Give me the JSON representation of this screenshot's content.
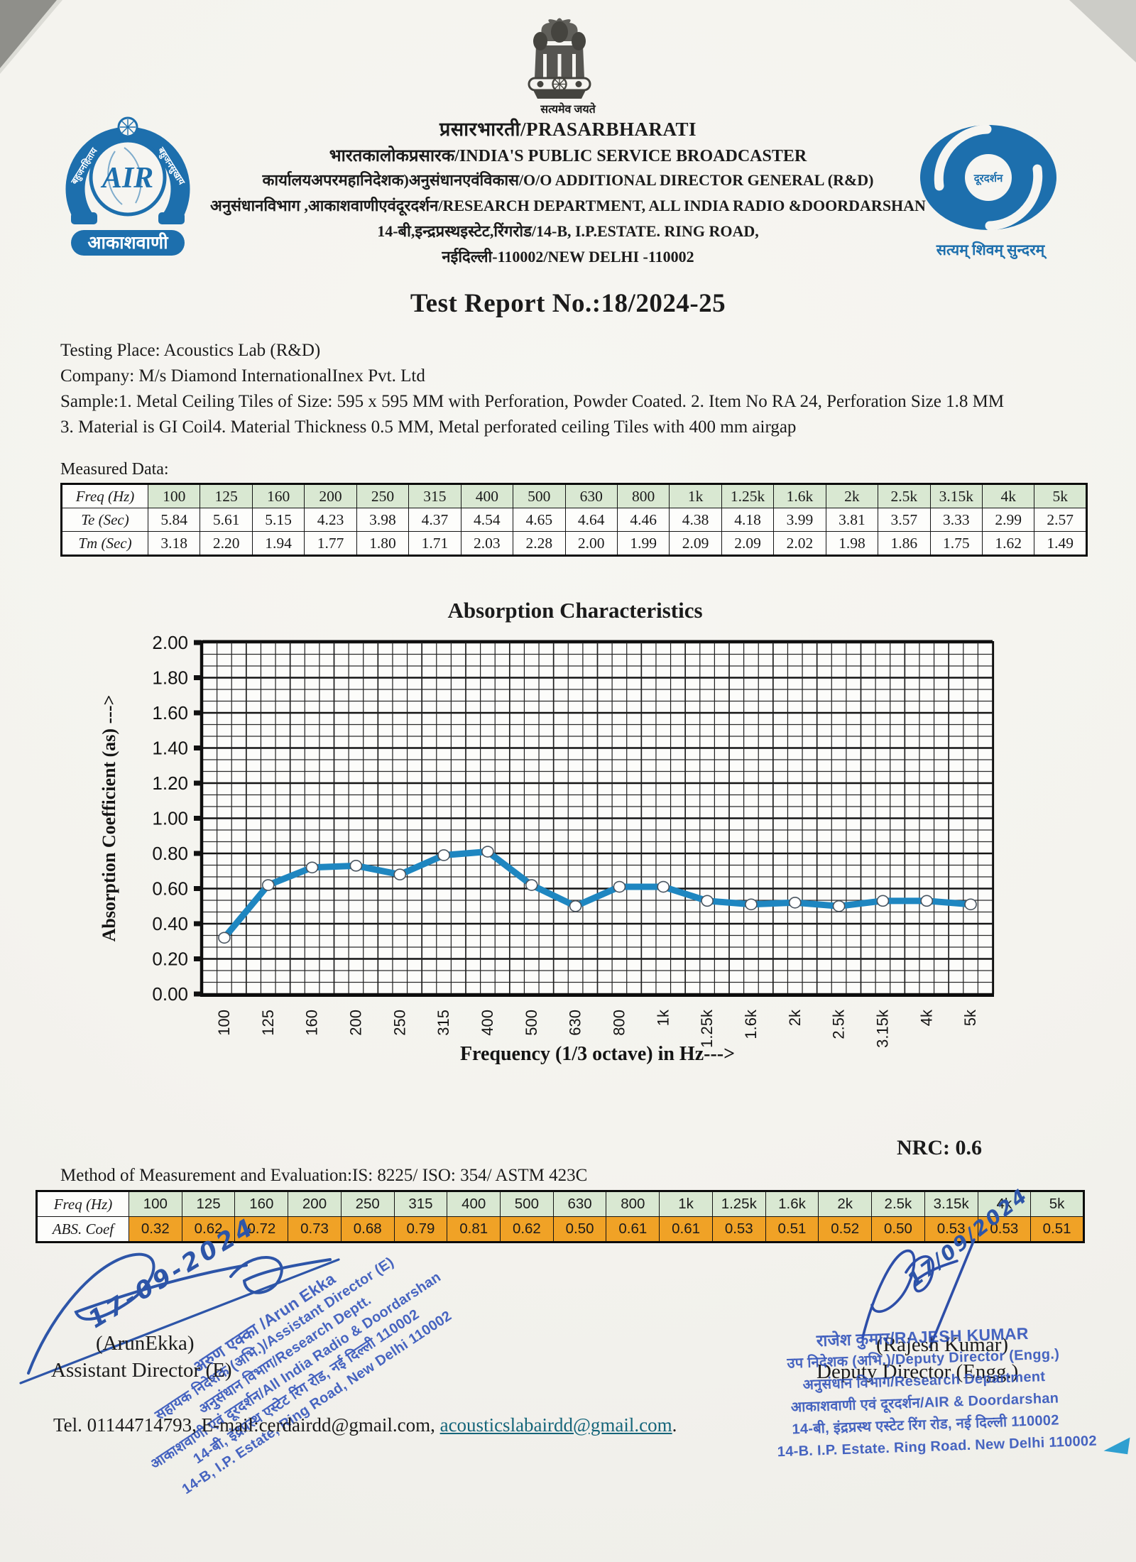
{
  "header": {
    "emblem_caption": "सत्यमेव जयते",
    "line1": "प्रसारभारती/PRASARBHARATI",
    "line2": "भारतकालोकप्रसारक/INDIA'S PUBLIC SERVICE BROADCASTER",
    "line3": "कार्यालयअपरमहानिदेशक)अनुसंधानएवंविकास/O/O ADDITIONAL DIRECTOR GENERAL (R&D)",
    "line4": "अनुसंधानविभाग ,आकाशवाणीएवंदूरदर्शन/RESEARCH DEPARTMENT, ALL INDIA RADIO &DOORDARSHAN",
    "line5": "14-बी,इन्द्रप्रस्थइस्टेट,रिंगरोड/14-B, I.P.ESTATE. RING ROAD,",
    "line6": "नईदिल्ली-110002/NEW DELHI -110002",
    "air_logo": {
      "monogram": "AIR",
      "label": "आकाशवाणी",
      "arc_left": "बहुजनहिताय",
      "arc_right": "बहुजनसुखाय"
    },
    "dd_logo": {
      "center": "दूरदर्शन",
      "motto": "सत्यम् शिवम् सुन्दरम्"
    }
  },
  "title": "Test Report No.:18/2024-25",
  "info": {
    "testing_place": "Testing Place: Acoustics Lab (R&D)",
    "company": "Company:  M/s Diamond  InternationalInex Pvt. Ltd",
    "sample_line1": "Sample:1. Metal Ceiling Tiles of Size: 595 x 595 MM with Perforation, Powder Coated. 2. Item No RA 24, Perforation Size 1.8 MM",
    "sample_line2": "3. Material is GI Coil4. Material Thickness 0.5 MM, Metal perforated ceiling Tiles with 400 mm airgap"
  },
  "measured_data": {
    "section_label": "Measured Data:",
    "row_headers": [
      "Freq (Hz)",
      "Te (Sec)",
      "Tm (Sec)"
    ],
    "frequencies": [
      "100",
      "125",
      "160",
      "200",
      "250",
      "315",
      "400",
      "500",
      "630",
      "800",
      "1k",
      "1.25k",
      "1.6k",
      "2k",
      "2.5k",
      "3.15k",
      "4k",
      "5k"
    ],
    "te": [
      "5.84",
      "5.61",
      "5.15",
      "4.23",
      "3.98",
      "4.37",
      "4.54",
      "4.65",
      "4.64",
      "4.46",
      "4.38",
      "4.18",
      "3.99",
      "3.81",
      "3.57",
      "3.33",
      "2.99",
      "2.57"
    ],
    "tm": [
      "3.18",
      "2.20",
      "1.94",
      "1.77",
      "1.80",
      "1.71",
      "2.03",
      "2.28",
      "2.00",
      "1.99",
      "2.09",
      "2.09",
      "2.02",
      "1.98",
      "1.86",
      "1.75",
      "1.62",
      "1.49"
    ]
  },
  "chart_data": {
    "type": "line",
    "title": "Absorption Characteristics",
    "xlabel": "Frequency (1/3 octave) in Hz--->",
    "ylabel": "Absorption Coefficient (as) --->",
    "categories": [
      "100",
      "125",
      "160",
      "200",
      "250",
      "315",
      "400",
      "500",
      "630",
      "800",
      "1k",
      "1.25k",
      "1.6k",
      "2k",
      "2.5k",
      "3.15k",
      "4k",
      "5k"
    ],
    "values": [
      0.32,
      0.62,
      0.72,
      0.73,
      0.68,
      0.79,
      0.81,
      0.62,
      0.5,
      0.61,
      0.61,
      0.53,
      0.51,
      0.52,
      0.5,
      0.53,
      0.53,
      0.51
    ],
    "ylim": [
      0.0,
      2.0
    ],
    "ytick_step": 0.2,
    "ytick_labels": [
      "0.00",
      "0.20",
      "0.40",
      "0.60",
      "0.80",
      "1.00",
      "1.20",
      "1.40",
      "1.60",
      "1.80",
      "2.00"
    ],
    "grid": "fine graph-paper, major lines every 0.2",
    "legend": "none",
    "line_color": "#1E86C0",
    "marker": "white circle"
  },
  "nrc_label": "NRC: 0.6",
  "method_line": "Method of Measurement and Evaluation:IS: 8225/ ISO: 354/ ASTM 423C",
  "abs_table": {
    "row_headers": [
      "Freq (Hz)",
      "ABS.  Coef"
    ],
    "frequencies": [
      "100",
      "125",
      "160",
      "200",
      "250",
      "315",
      "400",
      "500",
      "630",
      "800",
      "1k",
      "1.25k",
      "1.6k",
      "2k",
      "2.5k",
      "3.15k",
      "4k",
      "5k"
    ],
    "coefficients": [
      "0.32",
      "0.62",
      "0.72",
      "0.73",
      "0.68",
      "0.79",
      "0.81",
      "0.62",
      "0.50",
      "0.61",
      "0.61",
      "0.53",
      "0.51",
      "0.52",
      "0.50",
      "0.53",
      "0.53",
      "0.51"
    ]
  },
  "signatures": {
    "left": {
      "date": "17-09-2024",
      "name": "(ArunEkka)",
      "designation": "Assistant Director (E)",
      "stamp_lines": [
        "अरुण एक्का /Arun Ekka",
        "सहायक निदेशक (अभि.)/Assistant Director (E)",
        "अनुसंधान विभाग/Research Deptt.",
        "आकाशवाणी एवं दूरदर्शन/All India Radio & Doordarshan",
        "14-बी, इंद्रप्रस्थ एस्टेट रिंग रोड, नई दिल्ली 110002",
        "14-B, I.P. Estate, Ring Road, New Delhi 110002"
      ]
    },
    "right": {
      "date": "17/09/2024",
      "name": "(Rajesh Kumar)",
      "designation": "Deputy Director (Engg.)",
      "stamp_lines": [
        "राजेश कुमार/RAJESH KUMAR",
        "उप निदेशक (अभि.)/Deputy Director (Engg.)",
        "अनुसंधान विभाग/Research Department",
        "आकाशवाणी एवं दूरदर्शन/AIR & Doordarshan",
        "14-बी, इंद्रप्रस्थ एस्टेट रिंग रोड, नई दिल्ली 110002",
        "14-B. I.P. Estate. Ring Road. New Delhi 110002"
      ]
    }
  },
  "footer": {
    "tel_prefix": "Tel. 01144714793, E-mail:cerdairdd@gmail.com, ",
    "email_link": "acousticslabairdd@gmail.com",
    "suffix": "."
  },
  "colors": {
    "logo_blue": "#1d6fad",
    "stamp_blue": "#2d50b9",
    "signature_blue": "#2d55a8",
    "chart_line_blue": "#1E86C0",
    "table_green": "#d9e8d2",
    "table_orange": "#f0a226",
    "email_link_teal": "#16657a",
    "paper": "#f5f4f0"
  }
}
